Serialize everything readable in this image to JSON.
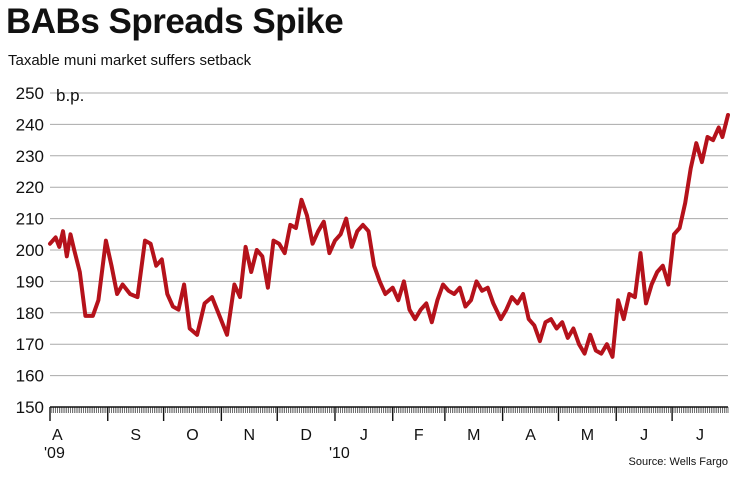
{
  "header": {
    "title": "BABs Spreads Spike",
    "subtitle": "Taxable muni market suffers setback"
  },
  "source": "Source: Wells Fargo",
  "chart_data": {
    "type": "line",
    "title": "BABs Spreads Spike",
    "subtitle": "Taxable muni market suffers setback",
    "ylabel": "b.p.",
    "xlabel": "",
    "ylim": [
      150,
      250
    ],
    "yticks": [
      150,
      160,
      170,
      180,
      190,
      200,
      210,
      220,
      230,
      240,
      250
    ],
    "xlim": [
      "2009-08-01",
      "2010-07-31"
    ],
    "month_ticks": [
      {
        "label": "A",
        "date": "2009-08-01"
      },
      {
        "label": "S",
        "date": "2009-09-01"
      },
      {
        "label": "O",
        "date": "2009-10-01"
      },
      {
        "label": "N",
        "date": "2009-11-01"
      },
      {
        "label": "D",
        "date": "2009-12-01"
      },
      {
        "label": "J",
        "date": "2010-01-01"
      },
      {
        "label": "F",
        "date": "2010-02-01"
      },
      {
        "label": "M",
        "date": "2010-03-01"
      },
      {
        "label": "A",
        "date": "2010-04-01"
      },
      {
        "label": "M",
        "date": "2010-05-01"
      },
      {
        "label": "J",
        "date": "2010-06-01"
      },
      {
        "label": "J",
        "date": "2010-07-01"
      }
    ],
    "year_labels": [
      {
        "label": "'09",
        "date": "2009-08-01"
      },
      {
        "label": "'10",
        "date": "2010-01-01"
      }
    ],
    "grid": true,
    "series": [
      {
        "color": "#b5121b",
        "points": [
          [
            "2009-08-01",
            202
          ],
          [
            "2009-08-04",
            204
          ],
          [
            "2009-08-06",
            201
          ],
          [
            "2009-08-08",
            206
          ],
          [
            "2009-08-10",
            198
          ],
          [
            "2009-08-12",
            205
          ],
          [
            "2009-08-14",
            200
          ],
          [
            "2009-08-17",
            193
          ],
          [
            "2009-08-20",
            179
          ],
          [
            "2009-08-24",
            179
          ],
          [
            "2009-08-27",
            184
          ],
          [
            "2009-08-31",
            203
          ],
          [
            "2009-09-03",
            195
          ],
          [
            "2009-09-06",
            186
          ],
          [
            "2009-09-09",
            189
          ],
          [
            "2009-09-13",
            186
          ],
          [
            "2009-09-17",
            185
          ],
          [
            "2009-09-21",
            203
          ],
          [
            "2009-09-24",
            202
          ],
          [
            "2009-09-27",
            195
          ],
          [
            "2009-09-30",
            197
          ],
          [
            "2009-10-03",
            186
          ],
          [
            "2009-10-06",
            182
          ],
          [
            "2009-10-09",
            181
          ],
          [
            "2009-10-12",
            189
          ],
          [
            "2009-10-15",
            175
          ],
          [
            "2009-10-19",
            173
          ],
          [
            "2009-10-23",
            183
          ],
          [
            "2009-10-27",
            185
          ],
          [
            "2009-10-31",
            179
          ],
          [
            "2009-11-04",
            173
          ],
          [
            "2009-11-08",
            189
          ],
          [
            "2009-11-11",
            185
          ],
          [
            "2009-11-14",
            201
          ],
          [
            "2009-11-17",
            193
          ],
          [
            "2009-11-20",
            200
          ],
          [
            "2009-11-23",
            198
          ],
          [
            "2009-11-26",
            188
          ],
          [
            "2009-11-29",
            203
          ],
          [
            "2009-12-02",
            202
          ],
          [
            "2009-12-05",
            199
          ],
          [
            "2009-12-08",
            208
          ],
          [
            "2009-12-11",
            207
          ],
          [
            "2009-12-14",
            216
          ],
          [
            "2009-12-17",
            211
          ],
          [
            "2009-12-20",
            202
          ],
          [
            "2009-12-23",
            206
          ],
          [
            "2009-12-26",
            209
          ],
          [
            "2009-12-29",
            199
          ],
          [
            "2010-01-01",
            203
          ],
          [
            "2010-01-04",
            205
          ],
          [
            "2010-01-07",
            210
          ],
          [
            "2010-01-10",
            201
          ],
          [
            "2010-01-13",
            206
          ],
          [
            "2010-01-16",
            208
          ],
          [
            "2010-01-19",
            206
          ],
          [
            "2010-01-22",
            195
          ],
          [
            "2010-01-25",
            190
          ],
          [
            "2010-01-28",
            186
          ],
          [
            "2010-02-01",
            188
          ],
          [
            "2010-02-04",
            184
          ],
          [
            "2010-02-07",
            190
          ],
          [
            "2010-02-10",
            181
          ],
          [
            "2010-02-13",
            178
          ],
          [
            "2010-02-16",
            181
          ],
          [
            "2010-02-19",
            183
          ],
          [
            "2010-02-22",
            177
          ],
          [
            "2010-02-25",
            184
          ],
          [
            "2010-02-28",
            189
          ],
          [
            "2010-03-03",
            187
          ],
          [
            "2010-03-06",
            186
          ],
          [
            "2010-03-09",
            188
          ],
          [
            "2010-03-12",
            182
          ],
          [
            "2010-03-15",
            184
          ],
          [
            "2010-03-18",
            190
          ],
          [
            "2010-03-21",
            187
          ],
          [
            "2010-03-24",
            188
          ],
          [
            "2010-03-27",
            183
          ],
          [
            "2010-03-31",
            178
          ],
          [
            "2010-04-03",
            181
          ],
          [
            "2010-04-06",
            185
          ],
          [
            "2010-04-09",
            183
          ],
          [
            "2010-04-12",
            186
          ],
          [
            "2010-04-15",
            178
          ],
          [
            "2010-04-18",
            176
          ],
          [
            "2010-04-21",
            171
          ],
          [
            "2010-04-24",
            177
          ],
          [
            "2010-04-27",
            178
          ],
          [
            "2010-04-30",
            175
          ],
          [
            "2010-05-03",
            177
          ],
          [
            "2010-05-06",
            172
          ],
          [
            "2010-05-09",
            175
          ],
          [
            "2010-05-12",
            170
          ],
          [
            "2010-05-15",
            167
          ],
          [
            "2010-05-18",
            173
          ],
          [
            "2010-05-21",
            168
          ],
          [
            "2010-05-24",
            167
          ],
          [
            "2010-05-27",
            170
          ],
          [
            "2010-05-30",
            166
          ],
          [
            "2010-06-02",
            184
          ],
          [
            "2010-06-05",
            178
          ],
          [
            "2010-06-08",
            186
          ],
          [
            "2010-06-11",
            185
          ],
          [
            "2010-06-14",
            199
          ],
          [
            "2010-06-17",
            183
          ],
          [
            "2010-06-20",
            189
          ],
          [
            "2010-06-23",
            193
          ],
          [
            "2010-06-26",
            195
          ],
          [
            "2010-06-29",
            189
          ],
          [
            "2010-07-02",
            205
          ],
          [
            "2010-07-05",
            207
          ],
          [
            "2010-07-08",
            215
          ],
          [
            "2010-07-11",
            226
          ],
          [
            "2010-07-14",
            234
          ],
          [
            "2010-07-17",
            228
          ],
          [
            "2010-07-20",
            236
          ],
          [
            "2010-07-23",
            235
          ],
          [
            "2010-07-26",
            239
          ],
          [
            "2010-07-28",
            236
          ],
          [
            "2010-07-31",
            243
          ]
        ]
      }
    ]
  }
}
